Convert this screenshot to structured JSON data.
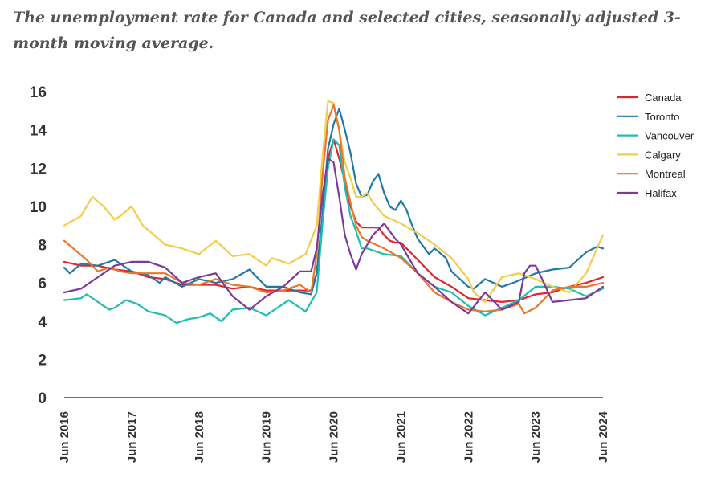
{
  "title": "The unemployment rate for Canada and selected cities, seasonally adjusted 3-month moving average.",
  "chart_data": {
    "type": "line",
    "title": "The unemployment rate for Canada and selected cities, seasonally adjusted 3-month moving average.",
    "xlabel": "",
    "ylabel": "",
    "ylim": [
      0,
      16
    ],
    "yticks": [
      "0",
      "2",
      "4",
      "6",
      "8",
      "10",
      "12",
      "14",
      "16"
    ],
    "xlim": [
      "Jun 2016",
      "Jun 2024"
    ],
    "xticks": [
      "Jun 2016",
      "Jun 2017",
      "Jun 2018",
      "Jun 2019",
      "Jun 2020",
      "Jun 2021",
      "Jun 2022",
      "Jun 2023",
      "Jun 2024"
    ],
    "grid": false,
    "legend": "right",
    "series": [
      {
        "name": "Canada",
        "color": "#e3242b",
        "points": [
          [
            "Jun 2016",
            7.1
          ],
          [
            "Sep 2016",
            6.9
          ],
          [
            "Dec 2016",
            6.9
          ],
          [
            "Mar 2017",
            6.7
          ],
          [
            "Jun 2017",
            6.6
          ],
          [
            "Sep 2017",
            6.3
          ],
          [
            "Dec 2017",
            6.2
          ],
          [
            "Mar 2018",
            5.9
          ],
          [
            "Jun 2018",
            5.9
          ],
          [
            "Sep 2018",
            5.9
          ],
          [
            "Dec 2018",
            5.7
          ],
          [
            "Mar 2019",
            5.8
          ],
          [
            "Jun 2019",
            5.6
          ],
          [
            "Sep 2019",
            5.6
          ],
          [
            "Dec 2019",
            5.6
          ],
          [
            "Feb 2020",
            5.6
          ],
          [
            "Mar 2020",
            6.5
          ],
          [
            "Apr 2020",
            9.5
          ],
          [
            "May 2020",
            12.5
          ],
          [
            "Jun 2020",
            13.5
          ],
          [
            "Jul 2020",
            12.5
          ],
          [
            "Aug 2020",
            11.3
          ],
          [
            "Sep 2020",
            10.0
          ],
          [
            "Oct 2020",
            9.2
          ],
          [
            "Nov 2020",
            8.9
          ],
          [
            "Dec 2020",
            8.9
          ],
          [
            "Jan 2021",
            8.9
          ],
          [
            "Feb 2021",
            8.9
          ],
          [
            "Mar 2021",
            8.5
          ],
          [
            "Apr 2021",
            8.2
          ],
          [
            "May 2021",
            8.1
          ],
          [
            "Jun 2021",
            8.1
          ],
          [
            "Jul 2021",
            7.8
          ],
          [
            "Aug 2021",
            7.5
          ],
          [
            "Sep 2021",
            7.2
          ],
          [
            "Dec 2021",
            6.3
          ],
          [
            "Mar 2022",
            5.8
          ],
          [
            "Jun 2022",
            5.2
          ],
          [
            "Sep 2022",
            5.1
          ],
          [
            "Dec 2022",
            5.0
          ],
          [
            "Mar 2023",
            5.1
          ],
          [
            "Jun 2023",
            5.4
          ],
          [
            "Sep 2023",
            5.5
          ],
          [
            "Dec 2023",
            5.8
          ],
          [
            "Mar 2024",
            6.0
          ],
          [
            "Jun 2024",
            6.3
          ]
        ]
      },
      {
        "name": "Toronto",
        "color": "#1f7aa8",
        "points": [
          [
            "Jun 2016",
            6.8
          ],
          [
            "Jul 2016",
            6.5
          ],
          [
            "Sep 2016",
            7.0
          ],
          [
            "Dec 2016",
            6.9
          ],
          [
            "Mar 2017",
            7.2
          ],
          [
            "Jun 2017",
            6.6
          ],
          [
            "Sep 2017",
            6.4
          ],
          [
            "Nov 2017",
            6.0
          ],
          [
            "Dec 2017",
            6.3
          ],
          [
            "Mar 2018",
            5.8
          ],
          [
            "Jun 2018",
            6.2
          ],
          [
            "Sep 2018",
            6.0
          ],
          [
            "Dec 2018",
            6.2
          ],
          [
            "Mar 2019",
            6.7
          ],
          [
            "Jun 2019",
            5.8
          ],
          [
            "Sep 2019",
            5.8
          ],
          [
            "Dec 2019",
            5.5
          ],
          [
            "Feb 2020",
            5.4
          ],
          [
            "Mar 2020",
            6.5
          ],
          [
            "Apr 2020",
            9.5
          ],
          [
            "May 2020",
            13.0
          ],
          [
            "Jun 2020",
            14.3
          ],
          [
            "Jul 2020",
            15.1
          ],
          [
            "Aug 2020",
            14.0
          ],
          [
            "Sep 2020",
            12.8
          ],
          [
            "Oct 2020",
            11.2
          ],
          [
            "Nov 2020",
            10.5
          ],
          [
            "Dec 2020",
            10.6
          ],
          [
            "Jan 2021",
            11.3
          ],
          [
            "Feb 2021",
            11.7
          ],
          [
            "Mar 2021",
            10.7
          ],
          [
            "Apr 2021",
            10.0
          ],
          [
            "May 2021",
            9.8
          ],
          [
            "Jun 2021",
            10.3
          ],
          [
            "Jul 2021",
            9.8
          ],
          [
            "Aug 2021",
            9.0
          ],
          [
            "Sep 2021",
            8.3
          ],
          [
            "Nov 2021",
            7.5
          ],
          [
            "Dec 2021",
            7.8
          ],
          [
            "Feb 2022",
            7.3
          ],
          [
            "Mar 2022",
            6.6
          ],
          [
            "Jun 2022",
            5.8
          ],
          [
            "Jul 2022",
            5.7
          ],
          [
            "Sep 2022",
            6.2
          ],
          [
            "Dec 2022",
            5.8
          ],
          [
            "Feb 2023",
            6.0
          ],
          [
            "Jun 2023",
            6.5
          ],
          [
            "Sep 2023",
            6.7
          ],
          [
            "Dec 2023",
            6.8
          ],
          [
            "Mar 2024",
            7.6
          ],
          [
            "May 2024",
            7.9
          ],
          [
            "Jun 2024",
            7.8
          ]
        ]
      },
      {
        "name": "Vancouver",
        "color": "#1fbfb0",
        "points": [
          [
            "Jun 2016",
            5.1
          ],
          [
            "Sep 2016",
            5.2
          ],
          [
            "Oct 2016",
            5.4
          ],
          [
            "Dec 2016",
            5.0
          ],
          [
            "Feb 2017",
            4.6
          ],
          [
            "Mar 2017",
            4.7
          ],
          [
            "May 2017",
            5.1
          ],
          [
            "Jul 2017",
            4.9
          ],
          [
            "Sep 2017",
            4.5
          ],
          [
            "Dec 2017",
            4.3
          ],
          [
            "Feb 2018",
            3.9
          ],
          [
            "Apr 2018",
            4.1
          ],
          [
            "Jun 2018",
            4.2
          ],
          [
            "Aug 2018",
            4.4
          ],
          [
            "Oct 2018",
            4.0
          ],
          [
            "Dec 2018",
            4.6
          ],
          [
            "Mar 2019",
            4.7
          ],
          [
            "Jun 2019",
            4.3
          ],
          [
            "Sep 2019",
            4.9
          ],
          [
            "Oct 2019",
            5.1
          ],
          [
            "Jan 2020",
            4.5
          ],
          [
            "Mar 2020",
            5.5
          ],
          [
            "Apr 2020",
            9.0
          ],
          [
            "May 2020",
            12.0
          ],
          [
            "Jun 2020",
            13.5
          ],
          [
            "Jul 2020",
            13.2
          ],
          [
            "Aug 2020",
            11.0
          ],
          [
            "Sep 2020",
            9.5
          ],
          [
            "Oct 2020",
            8.7
          ],
          [
            "Nov 2020",
            7.8
          ],
          [
            "Dec 2020",
            7.8
          ],
          [
            "Mar 2021",
            7.5
          ],
          [
            "Jun 2021",
            7.4
          ],
          [
            "Sep 2021",
            6.5
          ],
          [
            "Dec 2021",
            5.8
          ],
          [
            "Mar 2022",
            5.5
          ],
          [
            "Jun 2022",
            4.8
          ],
          [
            "Sep 2022",
            4.3
          ],
          [
            "Dec 2022",
            4.7
          ],
          [
            "Mar 2023",
            5.1
          ],
          [
            "Jun 2023",
            5.8
          ],
          [
            "Sep 2023",
            5.8
          ],
          [
            "Dec 2023",
            5.7
          ],
          [
            "Mar 2024",
            5.3
          ],
          [
            "Jun 2024",
            5.7
          ]
        ]
      },
      {
        "name": "Calgary",
        "color": "#f2cd4b",
        "points": [
          [
            "Jun 2016",
            9.0
          ],
          [
            "Sep 2016",
            9.5
          ],
          [
            "Nov 2016",
            10.5
          ],
          [
            "Jan 2017",
            10.0
          ],
          [
            "Mar 2017",
            9.3
          ],
          [
            "Apr 2017",
            9.5
          ],
          [
            "Jun 2017",
            10.0
          ],
          [
            "Aug 2017",
            9.0
          ],
          [
            "Oct 2017",
            8.5
          ],
          [
            "Dec 2017",
            8.0
          ],
          [
            "Mar 2018",
            7.8
          ],
          [
            "Jun 2018",
            7.5
          ],
          [
            "Sep 2018",
            8.2
          ],
          [
            "Dec 2018",
            7.4
          ],
          [
            "Mar 2019",
            7.5
          ],
          [
            "Jun 2019",
            6.9
          ],
          [
            "Jul 2019",
            7.3
          ],
          [
            "Oct 2019",
            7.0
          ],
          [
            "Jan 2020",
            7.5
          ],
          [
            "Mar 2020",
            9.0
          ],
          [
            "Apr 2020",
            12.5
          ],
          [
            "May 2020",
            15.5
          ],
          [
            "Jun 2020",
            15.4
          ],
          [
            "Jul 2020",
            14.0
          ],
          [
            "Aug 2020",
            12.3
          ],
          [
            "Sep 2020",
            11.5
          ],
          [
            "Oct 2020",
            10.5
          ],
          [
            "Nov 2020",
            10.5
          ],
          [
            "Dec 2020",
            10.7
          ],
          [
            "Jan 2021",
            10.2
          ],
          [
            "Mar 2021",
            9.5
          ],
          [
            "Jun 2021",
            9.1
          ],
          [
            "Sep 2021",
            8.6
          ],
          [
            "Dec 2021",
            8.0
          ],
          [
            "Mar 2022",
            7.3
          ],
          [
            "Jun 2022",
            6.2
          ],
          [
            "Jul 2022",
            5.5
          ],
          [
            "Sep 2022",
            5.0
          ],
          [
            "Dec 2022",
            6.3
          ],
          [
            "Mar 2023",
            6.5
          ],
          [
            "Jun 2023",
            6.2
          ],
          [
            "Sep 2023",
            5.8
          ],
          [
            "Dec 2023",
            5.5
          ],
          [
            "Mar 2024",
            6.5
          ],
          [
            "Jun 2024",
            8.5
          ]
        ]
      },
      {
        "name": "Montreal",
        "color": "#e8762c",
        "points": [
          [
            "Jun 2016",
            8.2
          ],
          [
            "Aug 2016",
            7.7
          ],
          [
            "Oct 2016",
            7.2
          ],
          [
            "Dec 2016",
            6.6
          ],
          [
            "Feb 2017",
            6.8
          ],
          [
            "Apr 2017",
            6.6
          ],
          [
            "Jun 2017",
            6.5
          ],
          [
            "Sep 2017",
            6.5
          ],
          [
            "Dec 2017",
            6.5
          ],
          [
            "Mar 2018",
            6.0
          ],
          [
            "Jun 2018",
            5.9
          ],
          [
            "Sep 2018",
            6.2
          ],
          [
            "Dec 2018",
            5.9
          ],
          [
            "Mar 2019",
            5.8
          ],
          [
            "Jun 2019",
            5.5
          ],
          [
            "Sep 2019",
            5.6
          ],
          [
            "Dec 2019",
            5.9
          ],
          [
            "Feb 2020",
            5.5
          ],
          [
            "Mar 2020",
            7.5
          ],
          [
            "Apr 2020",
            11.5
          ],
          [
            "May 2020",
            14.5
          ],
          [
            "Jun 2020",
            15.3
          ],
          [
            "Jul 2020",
            14.0
          ],
          [
            "Aug 2020",
            11.5
          ],
          [
            "Sep 2020",
            10.2
          ],
          [
            "Oct 2020",
            9.0
          ],
          [
            "Nov 2020",
            8.4
          ],
          [
            "Dec 2020",
            8.2
          ],
          [
            "Mar 2021",
            7.8
          ],
          [
            "Jun 2021",
            7.3
          ],
          [
            "Sep 2021",
            6.5
          ],
          [
            "Dec 2021",
            5.5
          ],
          [
            "Mar 2022",
            5.0
          ],
          [
            "Jun 2022",
            4.6
          ],
          [
            "Sep 2022",
            4.5
          ],
          [
            "Dec 2022",
            4.6
          ],
          [
            "Mar 2023",
            4.9
          ],
          [
            "Apr 2023",
            4.4
          ],
          [
            "Jun 2023",
            4.7
          ],
          [
            "Sep 2023",
            5.6
          ],
          [
            "Dec 2023",
            5.8
          ],
          [
            "Mar 2024",
            5.8
          ],
          [
            "Jun 2024",
            6.0
          ]
        ]
      },
      {
        "name": "Halifax",
        "color": "#7e3a98",
        "points": [
          [
            "Jun 2016",
            5.5
          ],
          [
            "Sep 2016",
            5.7
          ],
          [
            "Dec 2016",
            6.3
          ],
          [
            "Mar 2017",
            6.9
          ],
          [
            "Jun 2017",
            7.1
          ],
          [
            "Sep 2017",
            7.1
          ],
          [
            "Dec 2017",
            6.8
          ],
          [
            "Mar 2018",
            6.0
          ],
          [
            "Jun 2018",
            6.3
          ],
          [
            "Sep 2018",
            6.5
          ],
          [
            "Dec 2018",
            5.3
          ],
          [
            "Mar 2019",
            4.6
          ],
          [
            "Jun 2019",
            5.3
          ],
          [
            "Sep 2019",
            5.8
          ],
          [
            "Dec 2019",
            6.6
          ],
          [
            "Feb 2020",
            6.6
          ],
          [
            "Mar 2020",
            7.8
          ],
          [
            "Apr 2020",
            10.5
          ],
          [
            "May 2020",
            12.5
          ],
          [
            "Jun 2020",
            12.3
          ],
          [
            "Jul 2020",
            10.5
          ],
          [
            "Aug 2020",
            8.5
          ],
          [
            "Sep 2020",
            7.5
          ],
          [
            "Oct 2020",
            6.7
          ],
          [
            "Nov 2020",
            7.5
          ],
          [
            "Dec 2020",
            8.0
          ],
          [
            "Jan 2021",
            8.5
          ],
          [
            "Mar 2021",
            9.1
          ],
          [
            "May 2021",
            8.3
          ],
          [
            "Jun 2021",
            8.0
          ],
          [
            "Sep 2021",
            6.5
          ],
          [
            "Dec 2021",
            5.8
          ],
          [
            "Mar 2022",
            5.0
          ],
          [
            "Jun 2022",
            4.4
          ],
          [
            "Sep 2022",
            5.5
          ],
          [
            "Dec 2022",
            4.6
          ],
          [
            "Mar 2023",
            5.0
          ],
          [
            "Apr 2023",
            6.5
          ],
          [
            "May 2023",
            6.9
          ],
          [
            "Jun 2023",
            6.9
          ],
          [
            "Jul 2023",
            6.3
          ],
          [
            "Sep 2023",
            5.0
          ],
          [
            "Dec 2023",
            5.1
          ],
          [
            "Mar 2024",
            5.2
          ],
          [
            "Jun 2024",
            5.8
          ]
        ]
      }
    ]
  }
}
